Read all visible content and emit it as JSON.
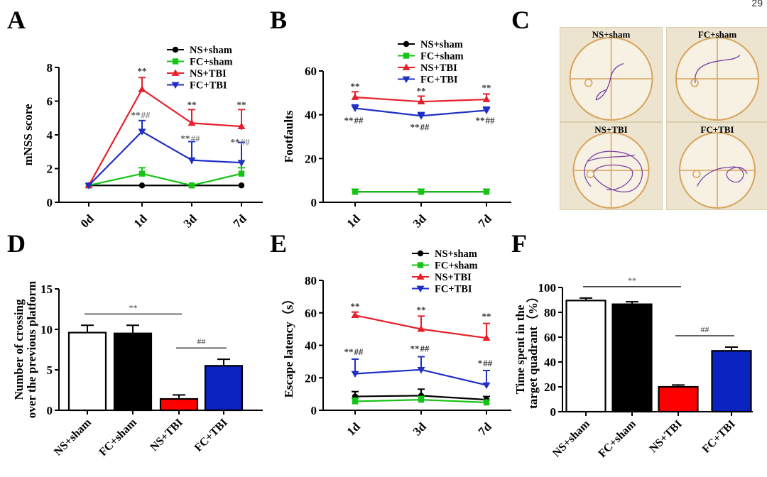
{
  "page_number": "29",
  "chart_data": [
    {
      "panel": "A",
      "type": "line",
      "ylabel": "mNSS  score",
      "xlabel": "",
      "categories": [
        "0d",
        "1d",
        "3d",
        "7d"
      ],
      "ylim": [
        0,
        8
      ],
      "yticks": [
        "0",
        "2",
        "4",
        "6",
        "8"
      ],
      "legend": "top-right",
      "series": [
        {
          "name": "NS+sham",
          "marker": "circle",
          "color": "#000000",
          "values": [
            1.0,
            1.0,
            1.0,
            1.0
          ],
          "errors": [
            0,
            0,
            0,
            0
          ]
        },
        {
          "name": "FC+sham",
          "marker": "square",
          "color": "#16c416",
          "values": [
            1.0,
            1.7,
            1.0,
            1.7
          ],
          "errors": [
            0,
            0.35,
            0,
            0.35
          ]
        },
        {
          "name": "NS+TBI",
          "marker": "triangle-up",
          "color": "#e8202a",
          "values": [
            1.0,
            6.7,
            4.7,
            4.5
          ],
          "errors": [
            0,
            0.7,
            0.8,
            1.0
          ]
        },
        {
          "name": "FC+TBI",
          "marker": "triangle-down",
          "color": "#1f2fc4",
          "values": [
            1.0,
            4.2,
            2.5,
            2.35
          ],
          "errors": [
            0,
            0.65,
            1.1,
            1.2
          ]
        }
      ],
      "annotations": [
        {
          "text": "**",
          "x": "1d",
          "y": 7.6
        },
        {
          "text": "**",
          "x": "3d",
          "y": 5.6
        },
        {
          "text": "**",
          "x": "7d",
          "y": 5.6
        },
        {
          "text": "**",
          "x": "1d",
          "y": 5.0,
          "color": "#555555"
        },
        {
          "text": "##",
          "x": "1d",
          "y": 5.0,
          "color": "#888888"
        },
        {
          "text": "**",
          "x": "3d",
          "y": 3.6,
          "color": "#555555"
        },
        {
          "text": "##",
          "x": "3d",
          "y": 3.6,
          "color": "#888888"
        },
        {
          "text": "**",
          "x": "7d",
          "y": 3.4,
          "color": "#555555"
        },
        {
          "text": "##",
          "x": "7d",
          "y": 3.4,
          "color": "#888888"
        }
      ]
    },
    {
      "panel": "B",
      "type": "line",
      "ylabel": "Footfaults",
      "xlabel": "",
      "categories": [
        "1d",
        "3d",
        "7d"
      ],
      "ylim": [
        0,
        60
      ],
      "yticks": [
        "0",
        "20",
        "40",
        "60"
      ],
      "legend": "top-right",
      "series": [
        {
          "name": "NS+sham",
          "marker": "circle",
          "color": "#000000",
          "values": [
            4.8,
            4.8,
            4.8
          ],
          "errors": [
            0,
            0,
            0
          ]
        },
        {
          "name": "FC+sham",
          "marker": "square",
          "color": "#16c416",
          "values": [
            4.8,
            4.8,
            4.8
          ],
          "errors": [
            1.2,
            1.2,
            1.2
          ]
        },
        {
          "name": "NS+TBI",
          "marker": "triangle-up",
          "color": "#e8202a",
          "values": [
            48,
            46,
            47
          ],
          "errors": [
            2.5,
            2.5,
            2.5
          ]
        },
        {
          "name": "FC+TBI",
          "marker": "triangle-down",
          "color": "#1f2fc4",
          "values": [
            43,
            39.5,
            42
          ],
          "errors": [
            1.5,
            1.5,
            1.5
          ]
        }
      ],
      "annotations": [
        {
          "text": "**",
          "x": "1d",
          "y": 51.5
        },
        {
          "text": "**",
          "x": "3d",
          "y": 49.5
        },
        {
          "text": "**",
          "x": "7d",
          "y": 51
        },
        {
          "text": "**",
          "x": "1d",
          "y": 36
        },
        {
          "text": "##",
          "x": "1d",
          "y": 36
        },
        {
          "text": "**",
          "x": "3d",
          "y": 33
        },
        {
          "text": "##",
          "x": "3d",
          "y": 33
        },
        {
          "text": "**",
          "x": "7d",
          "y": 36
        },
        {
          "text": "##",
          "x": "7d",
          "y": 36
        }
      ]
    },
    {
      "panel": "D",
      "type": "bar",
      "ylabel": "Number of crossing\nover the previous platform",
      "xlabel": "",
      "categories": [
        "NS+sham",
        "FC+sham",
        "NS+TBI",
        "FC+TBI"
      ],
      "values": [
        9.6,
        9.5,
        1.4,
        5.5
      ],
      "errors": [
        0.9,
        1.0,
        0.5,
        0.8
      ],
      "colors": [
        "#ffffff",
        "#000000",
        "#ff0000",
        "#0a22c0"
      ],
      "ylim": [
        0,
        15
      ],
      "yticks": [
        "0",
        "5",
        "10",
        "15"
      ],
      "annotations": [
        {
          "text": "**",
          "between": [
            "NS+sham",
            "NS+TBI"
          ]
        },
        {
          "text": "##",
          "between": [
            "NS+TBI",
            "FC+TBI"
          ]
        }
      ]
    },
    {
      "panel": "E",
      "type": "line",
      "ylabel": "Escape latency（s）",
      "xlabel": "",
      "categories": [
        "1d",
        "3d",
        "7d"
      ],
      "ylim": [
        0,
        80
      ],
      "yticks": [
        "0",
        "20",
        "40",
        "60",
        "80"
      ],
      "legend": "top-right",
      "series": [
        {
          "name": "NS+sham",
          "marker": "circle",
          "color": "#000000",
          "values": [
            8.5,
            9,
            6.5
          ],
          "errors": [
            3,
            4,
            2
          ]
        },
        {
          "name": "FC+sham",
          "marker": "square",
          "color": "#16c416",
          "values": [
            5.5,
            6.5,
            4.8
          ],
          "errors": [
            2,
            2,
            1.5
          ]
        },
        {
          "name": "NS+TBI",
          "marker": "triangle-up",
          "color": "#e8202a",
          "values": [
            58.5,
            50,
            44.5
          ],
          "errors": [
            2,
            8,
            9
          ]
        },
        {
          "name": "FC+TBI",
          "marker": "triangle-down",
          "color": "#1f2fc4",
          "values": [
            22.5,
            25,
            15.5
          ],
          "errors": [
            9,
            8,
            9
          ]
        }
      ],
      "annotations": [
        {
          "text": "**",
          "x": "1d",
          "y": 62
        },
        {
          "text": "**",
          "x": "3d",
          "y": 60
        },
        {
          "text": "**",
          "x": "7d",
          "y": 56
        },
        {
          "text": "**",
          "x": "1d",
          "y": 34
        },
        {
          "text": "##",
          "x": "1d",
          "y": 34
        },
        {
          "text": "**",
          "x": "3d",
          "y": 36
        },
        {
          "text": "##",
          "x": "3d",
          "y": 36
        },
        {
          "text": "*",
          "x": "7d",
          "y": 27
        },
        {
          "text": "##",
          "x": "7d",
          "y": 27
        }
      ]
    },
    {
      "panel": "F",
      "type": "bar",
      "ylabel": "Time spent in the\ntarget quadrant（%）",
      "xlabel": "",
      "categories": [
        "NS+sham",
        "FC+sham",
        "NS+TBI",
        "FC+TBI"
      ],
      "values": [
        89.5,
        86.5,
        20,
        49
      ],
      "errors": [
        2,
        2,
        1.5,
        3
      ],
      "colors": [
        "#ffffff",
        "#000000",
        "#ff0000",
        "#0a22c0"
      ],
      "ylim": [
        0,
        100
      ],
      "yticks": [
        "0",
        "20",
        "40",
        "60",
        "80",
        "100"
      ],
      "annotations": [
        {
          "text": "**",
          "between": [
            "NS+sham",
            "NS+TBI"
          ]
        },
        {
          "text": "##",
          "between": [
            "NS+TBI",
            "FC+TBI"
          ]
        }
      ]
    }
  ],
  "panel_c": {
    "panel": "C",
    "images": [
      {
        "label": "NS+sham",
        "color": "#7b3fa0"
      },
      {
        "label": "FC+sham",
        "color": "#7b3fa0"
      },
      {
        "label": "NS+TBI",
        "color": "#7b3fa0"
      },
      {
        "label": "FC+TBI",
        "color": "#7b3fa0"
      }
    ]
  }
}
